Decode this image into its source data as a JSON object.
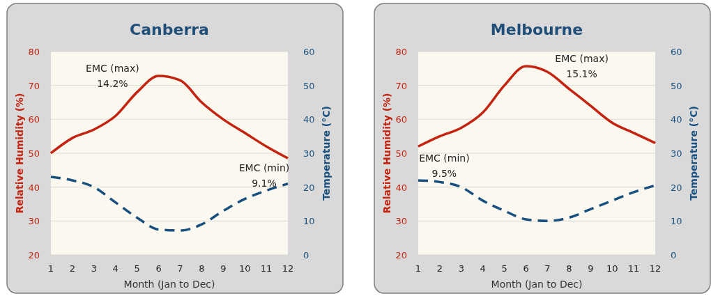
{
  "chart_data": [
    {
      "type": "line",
      "title": "Canberra",
      "xlabel": "Month (Jan to Dec)",
      "ylabel": "Relative Humidity (%)",
      "y2label": "Temperature (°C)",
      "x": [
        1,
        2,
        3,
        4,
        5,
        6,
        7,
        8,
        9,
        10,
        11,
        12
      ],
      "xlim": [
        1,
        12
      ],
      "xticks": [
        1,
        2,
        3,
        4,
        5,
        6,
        7,
        8,
        9,
        10,
        11,
        12
      ],
      "ylim": [
        20,
        80
      ],
      "yticks": [
        20,
        30,
        40,
        50,
        60,
        70,
        80
      ],
      "y2lim": [
        0,
        60
      ],
      "y2ticks": [
        0,
        10,
        20,
        30,
        40,
        50,
        60
      ],
      "grid": "y",
      "series": [
        {
          "color": "#c4230f",
          "line_style": "solid",
          "values": [
            50,
            54.5,
            57,
            61,
            68,
            72.8,
            71.5,
            65,
            60,
            56,
            52,
            48.5
          ]
        },
        {
          "color": "#17507f",
          "line_style": "dashed",
          "axis": "y2",
          "values": [
            23,
            22,
            20,
            15.5,
            11,
            7.5,
            7.2,
            9,
            13,
            16.5,
            19,
            21
          ]
        }
      ],
      "annotations": [
        "EMC (max)\n14.2%",
        "EMC (min)\n9.1%"
      ]
    },
    {
      "type": "line",
      "title": "Melbourne",
      "xlabel": "Month (Jan to Dec)",
      "ylabel": "Relative Humidity (%)",
      "y2label": "Temperature (°C)",
      "x": [
        1,
        2,
        3,
        4,
        5,
        6,
        7,
        8,
        9,
        10,
        11,
        12
      ],
      "xlim": [
        1,
        12
      ],
      "xticks": [
        1,
        2,
        3,
        4,
        5,
        6,
        7,
        8,
        9,
        10,
        11,
        12
      ],
      "ylim": [
        20,
        80
      ],
      "yticks": [
        20,
        30,
        40,
        50,
        60,
        70,
        80
      ],
      "y2lim": [
        0,
        60
      ],
      "y2ticks": [
        0,
        10,
        20,
        30,
        40,
        50,
        60
      ],
      "grid": "y",
      "series": [
        {
          "color": "#c4230f",
          "line_style": "solid",
          "values": [
            52,
            55,
            57.5,
            62,
            70,
            75.7,
            74,
            69,
            64,
            59,
            56,
            53
          ]
        },
        {
          "color": "#17507f",
          "line_style": "dashed",
          "axis": "y2",
          "values": [
            22,
            21.5,
            20,
            16,
            13,
            10.5,
            10,
            11,
            13.5,
            16,
            18.5,
            20.5
          ]
        }
      ],
      "annotations": [
        "EMC (max)\n15.1%",
        "EMC (min)\n9.5%"
      ]
    }
  ]
}
